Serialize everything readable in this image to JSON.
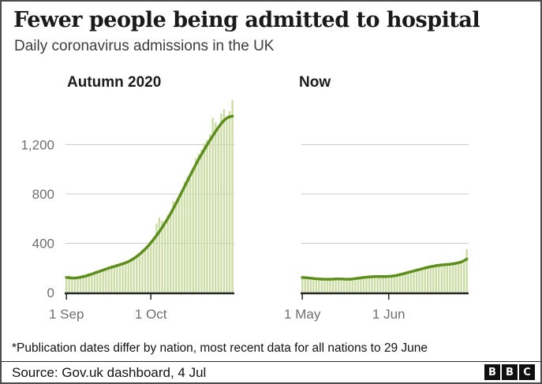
{
  "header": {
    "title": "Fewer people being admitted to hospital",
    "subtitle": "Daily coronavirus admissions in the UK"
  },
  "footnote": "*Publication dates differ by nation, most recent data for all nations to 29 June",
  "source": "Source: Gov.uk dashboard, 4 Jul",
  "logo_letters": [
    "B",
    "B",
    "C"
  ],
  "colors": {
    "bar": "#cbdda4",
    "line": "#5e8f1e",
    "grid": "#cccccc",
    "axis": "#262626",
    "tick_label": "#6f6f6f"
  },
  "chart_data": [
    {
      "type": "bar",
      "title": "Autumn 2020",
      "ylim": [
        0,
        1600
      ],
      "grid_values": [
        400,
        800,
        1200
      ],
      "y_ticks": [
        {
          "v": 0,
          "label": "0"
        },
        {
          "v": 400,
          "label": "400"
        },
        {
          "v": 800,
          "label": "800"
        },
        {
          "v": 1200,
          "label": "1,200"
        }
      ],
      "x_ticks": [
        {
          "day": 0,
          "label": "1 Sep"
        },
        {
          "day": 30,
          "label": "1 Oct"
        }
      ],
      "bars": [
        132,
        138,
        112,
        108,
        124,
        130,
        144,
        150,
        158,
        146,
        172,
        180,
        165,
        192,
        198,
        214,
        222,
        204,
        230,
        240,
        244,
        228,
        262,
        278,
        288,
        300,
        322,
        348,
        362,
        388,
        420,
        452,
        560,
        608,
        585,
        542,
        630,
        658,
        742,
        715,
        760,
        805,
        900,
        940,
        925,
        1010,
        1090,
        1125,
        1160,
        1212,
        1240,
        1285,
        1420,
        1380,
        1322,
        1452,
        1488,
        1398,
        1472,
        1560
      ],
      "line": [
        122,
        120,
        118,
        118,
        120,
        124,
        129,
        135,
        142,
        150,
        158,
        166,
        174,
        182,
        190,
        198,
        205,
        212,
        219,
        226,
        233,
        241,
        251,
        263,
        277,
        293,
        311,
        331,
        353,
        377,
        404,
        432,
        462,
        494,
        528,
        563,
        600,
        640,
        682,
        726,
        771,
        816,
        861,
        906,
        951,
        996,
        1040,
        1082,
        1122,
        1161,
        1199,
        1236,
        1272,
        1307,
        1340,
        1371,
        1397,
        1416,
        1427,
        1432
      ]
    },
    {
      "type": "bar",
      "title": "Now",
      "ylim": [
        0,
        1600
      ],
      "grid_values": [
        400,
        800,
        1200
      ],
      "y_ticks": [],
      "x_ticks": [
        {
          "day": 0,
          "label": "1 May"
        },
        {
          "day": 31,
          "label": "1 Jun"
        }
      ],
      "bars": [
        130,
        118,
        110,
        124,
        108,
        118,
        104,
        112,
        100,
        115,
        106,
        112,
        103,
        116,
        108,
        101,
        96,
        110,
        118,
        108,
        126,
        132,
        117,
        128,
        121,
        134,
        125,
        138,
        119,
        124,
        136,
        127,
        142,
        130,
        148,
        158,
        141,
        170,
        178,
        159,
        186,
        196,
        179,
        204,
        212,
        195,
        220,
        207,
        226,
        213,
        232,
        219,
        238,
        225,
        241,
        231,
        249,
        262,
        245,
        352
      ],
      "line": [
        122,
        121,
        119,
        117,
        114,
        112,
        110,
        109,
        108,
        108,
        108,
        109,
        110,
        110,
        110,
        109,
        108,
        108,
        110,
        113,
        116,
        119,
        122,
        125,
        127,
        128,
        129,
        130,
        130,
        130,
        130,
        131,
        133,
        136,
        140,
        145,
        151,
        157,
        163,
        169,
        175,
        181,
        187,
        193,
        199,
        205,
        210,
        214,
        218,
        221,
        224,
        226,
        228,
        230,
        233,
        237,
        242,
        248,
        258,
        272
      ]
    }
  ]
}
